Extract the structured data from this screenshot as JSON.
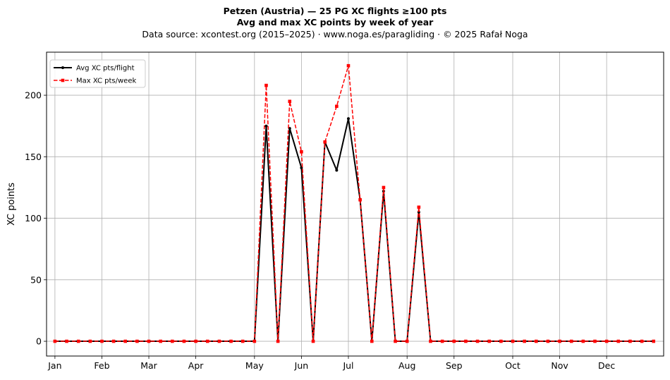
{
  "header": {
    "title": "Petzen (Austria)  —  25 PG XC flights ≥100 pts",
    "subtitle": "Avg and max XC points by week of year",
    "source": "Data source: xcontest.org (2015–2025)  ·  www.noga.es/paragliding  ·  © 2025 Rafał Noga"
  },
  "chart_data": {
    "type": "line",
    "title": "Petzen (Austria)  —  25 PG XC flights ≥100 pts",
    "subtitle": "Avg and max XC points by week of year",
    "xlabel": "",
    "ylabel": "XC points",
    "xlim": [
      -5,
      363
    ],
    "ylim": [
      -12,
      235
    ],
    "yticks": [
      0,
      50,
      100,
      150,
      200
    ],
    "xticks": [
      {
        "label": "Jan",
        "x": 0
      },
      {
        "label": "Feb",
        "x": 28
      },
      {
        "label": "Mar",
        "x": 56
      },
      {
        "label": "Apr",
        "x": 84
      },
      {
        "label": "May",
        "x": 119
      },
      {
        "label": "Jun",
        "x": 147
      },
      {
        "label": "Jul",
        "x": 175
      },
      {
        "label": "Aug",
        "x": 210
      },
      {
        "label": "Sep",
        "x": 238
      },
      {
        "label": "Oct",
        "x": 273
      },
      {
        "label": "Nov",
        "x": 301
      },
      {
        "label": "Dec",
        "x": 329
      }
    ],
    "grid": true,
    "legend_position": "top-left",
    "x": [
      0,
      7,
      14,
      21,
      28,
      35,
      42,
      49,
      56,
      63,
      70,
      77,
      84,
      91,
      98,
      105,
      112,
      119,
      126,
      133,
      140,
      147,
      154,
      161,
      168,
      175,
      182,
      189,
      196,
      203,
      210,
      217,
      224,
      231,
      238,
      245,
      252,
      259,
      266,
      273,
      280,
      287,
      294,
      301,
      308,
      315,
      322,
      329,
      336,
      343,
      350,
      357
    ],
    "series": [
      {
        "name": "Avg XC pts/flight",
        "color": "#000000",
        "style": "solid",
        "marker": "circle",
        "values": [
          0,
          0,
          0,
          0,
          0,
          0,
          0,
          0,
          0,
          0,
          0,
          0,
          0,
          0,
          0,
          0,
          0,
          0,
          175,
          0,
          173,
          141,
          0,
          162,
          139,
          181,
          115,
          0,
          122,
          0,
          0,
          105,
          0,
          0,
          0,
          0,
          0,
          0,
          0,
          0,
          0,
          0,
          0,
          0,
          0,
          0,
          0,
          0,
          0,
          0,
          0,
          0
        ]
      },
      {
        "name": "Max XC pts/week",
        "color": "#ff0000",
        "style": "dashed",
        "marker": "square",
        "values": [
          0,
          0,
          0,
          0,
          0,
          0,
          0,
          0,
          0,
          0,
          0,
          0,
          0,
          0,
          0,
          0,
          0,
          0,
          208,
          0,
          195,
          154,
          0,
          162,
          191,
          224,
          115,
          0,
          125,
          0,
          0,
          109,
          0,
          0,
          0,
          0,
          0,
          0,
          0,
          0,
          0,
          0,
          0,
          0,
          0,
          0,
          0,
          0,
          0,
          0,
          0,
          0
        ]
      }
    ]
  }
}
